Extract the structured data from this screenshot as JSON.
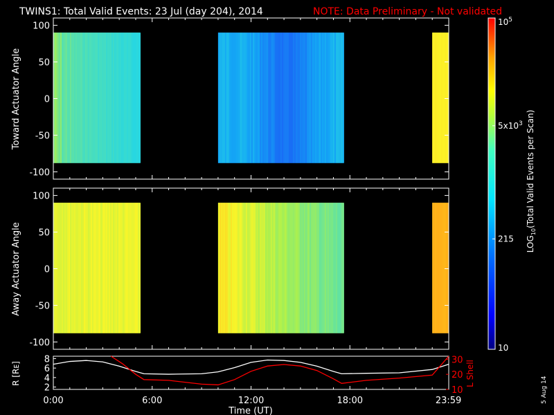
{
  "title": "TWINS1: Total Valid Events: 23 Jul (day 204), 2014",
  "note": "NOTE: Data Preliminary - Not validated",
  "date_stamp": "5 Aug 14",
  "colors": {
    "background": "#000000",
    "axis": "#ffffff",
    "note": "#ff0000",
    "l_shell_line": "#ff0000",
    "r_line": "#ffffff"
  },
  "chart_data": [
    {
      "type": "heatmap",
      "panel": "toward",
      "ylabel": "Toward Actuator Angle",
      "ylim": [
        -110,
        110
      ],
      "yticks": [
        100,
        50,
        0,
        -50,
        -100
      ],
      "data_ylim": [
        -88,
        90
      ],
      "xlim_hours": [
        0,
        24
      ],
      "blocks": [
        {
          "start_hour": 0.0,
          "end_hour": 5.25,
          "level": "green-cyan"
        },
        {
          "start_hour": 10.0,
          "end_hour": 17.6,
          "level": "cyan-blue, deepest blue near 14:00"
        },
        {
          "start_hour": 23.0,
          "end_hour": 24.0,
          "level": "yellow"
        }
      ]
    },
    {
      "type": "heatmap",
      "panel": "away",
      "ylabel": "Away Actuator Angle",
      "ylim": [
        -110,
        110
      ],
      "yticks": [
        100,
        50,
        0,
        -50,
        -100
      ],
      "data_ylim": [
        -88,
        90
      ],
      "xlim_hours": [
        0,
        24
      ],
      "blocks": [
        {
          "start_hour": 0.0,
          "end_hour": 5.25,
          "level": "yellow"
        },
        {
          "start_hour": 10.0,
          "end_hour": 17.6,
          "level": "yellow to green-cyan"
        },
        {
          "start_hour": 23.0,
          "end_hour": 24.0,
          "level": "orange"
        }
      ]
    },
    {
      "type": "line",
      "panel": "orbit",
      "ylabel": "R [Rᴇ]",
      "ylabel_right": "L Shell",
      "xlabel": "Time (UT)",
      "xtick_labels": [
        "0:00",
        "6:00",
        "12:00",
        "18:00",
        "23:59"
      ],
      "xtick_hours": [
        0,
        6,
        12,
        18,
        23.983
      ],
      "ylim": [
        1.5,
        8.5
      ],
      "yticks": [
        8,
        6,
        4,
        2
      ],
      "ylim_right": [
        10,
        32
      ],
      "yticks_right": [
        30,
        20,
        10
      ],
      "series": [
        {
          "axis": "left",
          "color": "#ffffff",
          "x": [
            0,
            1,
            2,
            3,
            4,
            5,
            5.5,
            7,
            9,
            10,
            11,
            12,
            13,
            14,
            15,
            16,
            17,
            17.5,
            19,
            21,
            23,
            24
          ],
          "y": [
            6.8,
            7.4,
            7.6,
            7.3,
            6.4,
            5.3,
            4.8,
            4.7,
            4.8,
            5.2,
            6.1,
            7.2,
            7.7,
            7.6,
            7.2,
            6.4,
            5.3,
            4.8,
            4.9,
            5.0,
            5.7,
            6.8
          ]
        },
        {
          "axis": "right",
          "color": "#ff0000",
          "x": [
            3.5,
            4.2,
            5.0,
            5.5,
            7,
            9,
            10,
            11,
            12,
            13,
            14,
            15,
            16,
            17,
            17.5,
            19,
            21,
            23,
            24
          ],
          "y": [
            32,
            27,
            20,
            16.5,
            16.0,
            13.5,
            13.0,
            16.5,
            22.0,
            25.5,
            26.5,
            25.5,
            22.5,
            17.0,
            14.0,
            16.0,
            17.5,
            19.5,
            32
          ]
        }
      ]
    }
  ],
  "colorbar": {
    "label_main": "LOG",
    "label_sub": "10",
    "label_rest": "(Total Valid Events per Scan)",
    "scale": "log",
    "range": [
      10,
      100000
    ],
    "ticks": [
      {
        "value": 100000,
        "label_base": "10",
        "label_exp": "5"
      },
      {
        "value": 5000,
        "label_base": "5x10",
        "label_exp": "3"
      },
      {
        "value": 215,
        "label_base": "215",
        "label_exp": ""
      },
      {
        "value": 10,
        "label_base": "10",
        "label_exp": ""
      }
    ]
  }
}
